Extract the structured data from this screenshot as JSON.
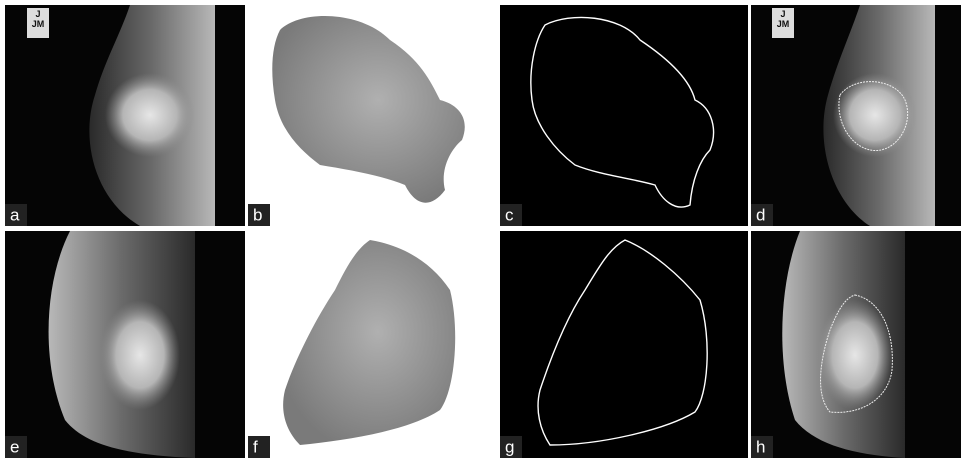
{
  "panels": [
    {
      "label": "a"
    },
    {
      "label": "b"
    },
    {
      "label": "c"
    },
    {
      "label": "d"
    },
    {
      "label": "e"
    },
    {
      "label": "f"
    },
    {
      "label": "g"
    },
    {
      "label": "h"
    }
  ],
  "marker_text": "J\nJM"
}
